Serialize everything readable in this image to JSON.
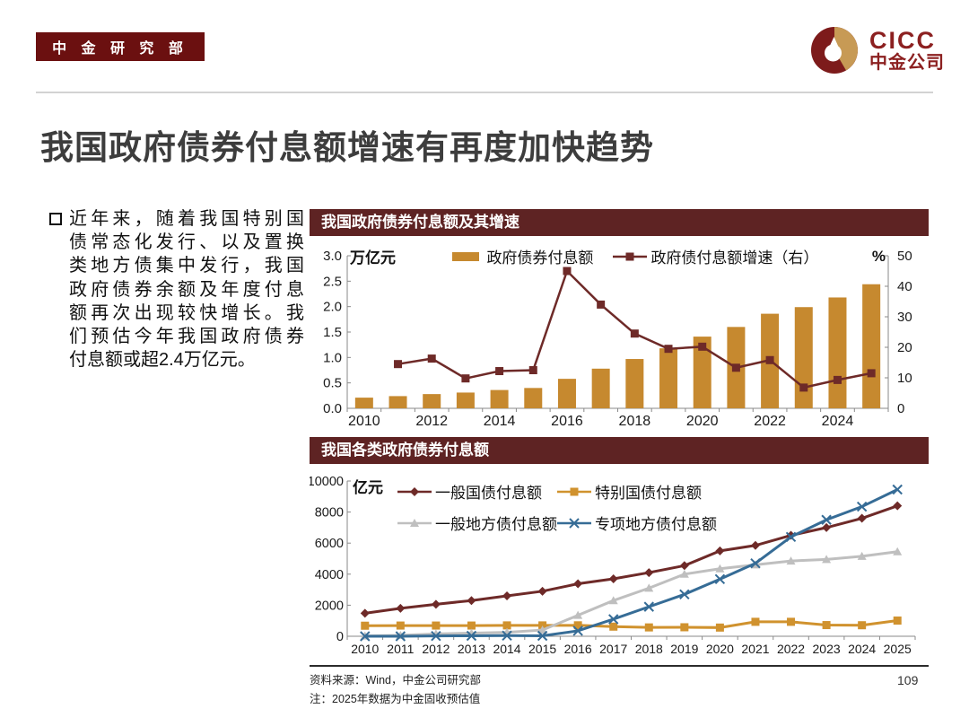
{
  "page": {
    "badge": "中 金 研 究 部",
    "title": "我国政府债券付息额增速有再度加快趋势",
    "source_line": "资料来源：Wind，中金公司研究部",
    "note_line": "注：2025年数据为中金固收预估值",
    "page_number": "109"
  },
  "logo": {
    "en": "CICC",
    "cn": "中金公司"
  },
  "intro": {
    "lines": [
      "近年来，随着我国特别国",
      "债常态化发行、以及置换",
      "类地方债集中发行，我国",
      "政府债券余额及年度付息",
      "额再次出现较快增长。我",
      "们预估今年我国政府债券",
      "付息额或超2.4万亿元。"
    ]
  },
  "colors": {
    "brand_maroon": "#6b1010",
    "panel_header": "#5e2323",
    "bar_gold": "#c6892f",
    "line_maroon": "#6e2a28",
    "line_gold": "#d0922e",
    "line_gray": "#bfbfbf",
    "line_blue": "#366c96"
  },
  "chart_data": [
    {
      "type": "bar",
      "header": "我国政府债券付息额及其增速",
      "unit_left": "万亿元",
      "unit_right": "%",
      "categories": [
        "2010",
        "2011",
        "2012",
        "2013",
        "2014",
        "2015",
        "2016",
        "2017",
        "2018",
        "2019",
        "2020",
        "2021",
        "2022",
        "2023",
        "2024",
        "2025"
      ],
      "x_tick_labels": [
        "2010",
        "2012",
        "2014",
        "2016",
        "2018",
        "2020",
        "2022",
        "2024"
      ],
      "x_tick_indices": [
        0,
        2,
        4,
        6,
        8,
        10,
        12,
        14
      ],
      "left_ticks": [
        "0.0",
        "0.5",
        "1.0",
        "1.5",
        "2.0",
        "2.5",
        "3.0"
      ],
      "right_ticks": [
        "0",
        "10",
        "20",
        "30",
        "40",
        "50"
      ],
      "ylim_left": [
        0,
        3.0
      ],
      "ylim_right": [
        0,
        50
      ],
      "legend_position": "top",
      "grid": false,
      "series": [
        {
          "name": "政府债券付息额",
          "type": "bar",
          "axis": "left",
          "color": "#c6892f",
          "values": [
            0.21,
            0.24,
            0.28,
            0.31,
            0.36,
            0.4,
            0.58,
            0.78,
            0.97,
            1.18,
            1.41,
            1.6,
            1.86,
            1.99,
            2.18,
            2.44
          ]
        },
        {
          "name": "政府债付息额增速（右）",
          "type": "line",
          "axis": "right",
          "color": "#6e2a28",
          "marker": "square",
          "values": [
            null,
            14.5,
            16.3,
            9.8,
            12.2,
            12.5,
            45.0,
            34.0,
            24.5,
            19.5,
            20.2,
            13.3,
            15.8,
            6.8,
            9.3,
            11.5
          ]
        }
      ]
    },
    {
      "type": "line",
      "header": "我国各类政府债券付息额",
      "unit_left": "亿元",
      "categories": [
        "2010",
        "2011",
        "2012",
        "2013",
        "2014",
        "2015",
        "2016",
        "2017",
        "2018",
        "2019",
        "2020",
        "2021",
        "2022",
        "2023",
        "2024",
        "2025"
      ],
      "left_ticks": [
        "0",
        "2000",
        "4000",
        "6000",
        "8000",
        "10000"
      ],
      "ylim": [
        0,
        10000
      ],
      "legend_position": "top",
      "grid": false,
      "series": [
        {
          "name": "一般国债付息额",
          "type": "line",
          "color": "#6e2a28",
          "marker": "diamond",
          "values": [
            1480,
            1800,
            2060,
            2300,
            2600,
            2900,
            3380,
            3700,
            4100,
            4550,
            5500,
            5850,
            6500,
            7000,
            7600,
            8400
          ]
        },
        {
          "name": "特别国债付息额",
          "type": "line",
          "color": "#d0922e",
          "marker": "square",
          "values": [
            680,
            690,
            690,
            690,
            700,
            700,
            705,
            620,
            570,
            580,
            560,
            930,
            930,
            720,
            710,
            1010
          ]
        },
        {
          "name": "一般地方债付息额",
          "type": "line",
          "color": "#bfbfbf",
          "marker": "triangle",
          "values": [
            20,
            60,
            150,
            200,
            250,
            400,
            1350,
            2300,
            3100,
            4000,
            4350,
            4600,
            4850,
            4950,
            5150,
            5450
          ]
        },
        {
          "name": "专项地方债付息额",
          "type": "line",
          "color": "#366c96",
          "marker": "x",
          "values": [
            0,
            0,
            20,
            30,
            40,
            30,
            350,
            1100,
            1900,
            2700,
            3680,
            4700,
            6400,
            7500,
            8350,
            9450
          ]
        }
      ]
    }
  ]
}
